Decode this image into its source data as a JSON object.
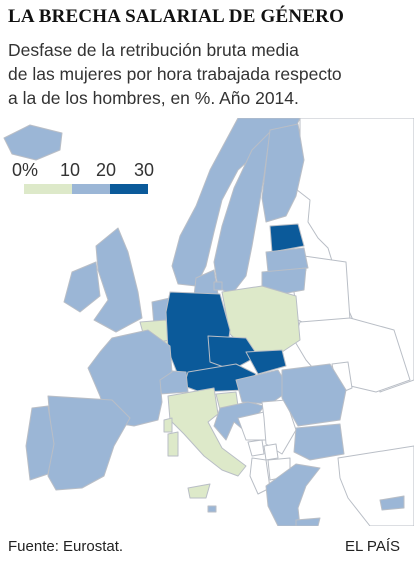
{
  "title": "LA BRECHA SALARIAL DE GÉNERO",
  "subtitle": [
    "Desfase de la retribución bruta media",
    "de las mujeres por hora trabajada respecto",
    "a la de los hombres, en %. Año 2014."
  ],
  "legend": {
    "ticks": [
      "0%",
      "10",
      "20",
      "30"
    ],
    "bins": [
      {
        "range": "0-10",
        "color": "#dde9c9"
      },
      {
        "range": "10-20",
        "color": "#9bb6d6"
      },
      {
        "range": "20-30",
        "color": "#0b5a9a"
      }
    ]
  },
  "colors": {
    "low": "#dde9c9",
    "mid": "#9bb6d6",
    "high": "#0b5a9a",
    "no_data": "#ffffff",
    "border": "#b9bec6"
  },
  "regions": [
    {
      "name": "Iceland",
      "bin": "mid"
    },
    {
      "name": "Norway",
      "bin": "mid"
    },
    {
      "name": "Sweden",
      "bin": "mid"
    },
    {
      "name": "Finland",
      "bin": "mid"
    },
    {
      "name": "Estonia",
      "bin": "high"
    },
    {
      "name": "Latvia",
      "bin": "mid"
    },
    {
      "name": "Lithuania",
      "bin": "mid"
    },
    {
      "name": "Ireland",
      "bin": "mid"
    },
    {
      "name": "United Kingdom",
      "bin": "mid"
    },
    {
      "name": "Denmark",
      "bin": "mid"
    },
    {
      "name": "Netherlands",
      "bin": "mid"
    },
    {
      "name": "Belgium",
      "bin": "low"
    },
    {
      "name": "Luxembourg",
      "bin": "low"
    },
    {
      "name": "Germany",
      "bin": "high"
    },
    {
      "name": "Poland",
      "bin": "low"
    },
    {
      "name": "Czech Republic",
      "bin": "high"
    },
    {
      "name": "Slovakia",
      "bin": "high"
    },
    {
      "name": "Austria",
      "bin": "high"
    },
    {
      "name": "Switzerland",
      "bin": "mid"
    },
    {
      "name": "France",
      "bin": "mid"
    },
    {
      "name": "Spain",
      "bin": "mid"
    },
    {
      "name": "Portugal",
      "bin": "mid"
    },
    {
      "name": "Italy",
      "bin": "low"
    },
    {
      "name": "Slovenia",
      "bin": "low"
    },
    {
      "name": "Croatia",
      "bin": "mid"
    },
    {
      "name": "Hungary",
      "bin": "mid"
    },
    {
      "name": "Romania",
      "bin": "mid"
    },
    {
      "name": "Bulgaria",
      "bin": "mid"
    },
    {
      "name": "Greece",
      "bin": "mid"
    },
    {
      "name": "Cyprus",
      "bin": "mid"
    },
    {
      "name": "Malta",
      "bin": "mid"
    },
    {
      "name": "Belarus",
      "bin": "no_data"
    },
    {
      "name": "Ukraine",
      "bin": "no_data"
    },
    {
      "name": "Moldova",
      "bin": "no_data"
    },
    {
      "name": "Serbia",
      "bin": "no_data"
    },
    {
      "name": "Bosnia and Herzegovina",
      "bin": "no_data"
    },
    {
      "name": "Montenegro",
      "bin": "no_data"
    },
    {
      "name": "Albania",
      "bin": "no_data"
    },
    {
      "name": "North Macedonia",
      "bin": "no_data"
    },
    {
      "name": "Kosovo",
      "bin": "no_data"
    },
    {
      "name": "Russia",
      "bin": "no_data"
    },
    {
      "name": "Turkey",
      "bin": "no_data"
    }
  ],
  "source": "Fuente: Eurostat.",
  "brand": "EL PAÍS"
}
